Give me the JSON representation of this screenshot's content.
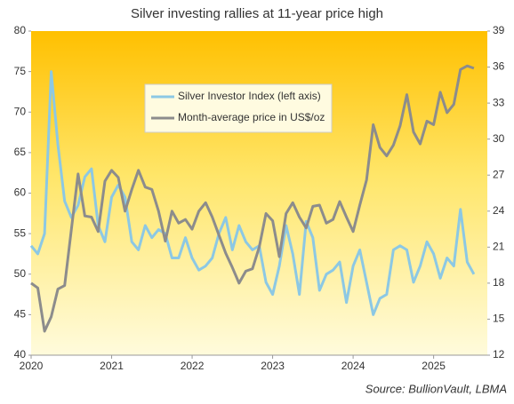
{
  "chart_data": {
    "type": "line",
    "title": "Silver investing rallies at 11-year price high",
    "source": "Source: BullionVault, LBMA",
    "x": [
      2020,
      2020.083,
      2020.167,
      2020.25,
      2020.333,
      2020.417,
      2020.5,
      2020.583,
      2020.667,
      2020.75,
      2020.833,
      2020.917,
      2021,
      2021.083,
      2021.167,
      2021.25,
      2021.333,
      2021.417,
      2021.5,
      2021.583,
      2021.667,
      2021.75,
      2021.833,
      2021.917,
      2022,
      2022.083,
      2022.167,
      2022.25,
      2022.333,
      2022.417,
      2022.5,
      2022.583,
      2022.667,
      2022.75,
      2022.833,
      2022.917,
      2023,
      2023.083,
      2023.167,
      2023.25,
      2023.333,
      2023.417,
      2023.5,
      2023.583,
      2023.667,
      2023.75,
      2023.833,
      2023.917,
      2024,
      2024.083,
      2024.167,
      2024.25,
      2024.333,
      2024.417,
      2024.5,
      2024.583,
      2024.667,
      2024.75,
      2024.833,
      2024.917,
      2025,
      2025.083,
      2025.167,
      2025.25,
      2025.333,
      2025.417,
      2025.5
    ],
    "xlim": [
      2020,
      2025.667
    ],
    "xticks": [
      2020,
      2021,
      2022,
      2023,
      2024,
      2025
    ],
    "ylim": [
      40,
      80
    ],
    "yticks": [
      40,
      45,
      50,
      55,
      60,
      65,
      70,
      75,
      80
    ],
    "y2lim": [
      12,
      39
    ],
    "y2ticks": [
      12,
      15,
      18,
      21,
      24,
      27,
      30,
      33,
      36,
      39
    ],
    "series": [
      {
        "name": "Silver Investor Index (left axis)",
        "color": "#8cc8e4",
        "values": [
          53.5,
          52.5,
          55,
          75,
          66,
          59,
          57,
          58.5,
          62,
          63,
          56,
          54,
          59.5,
          61,
          59.5,
          54,
          53,
          56,
          54.5,
          55.5,
          55,
          52,
          52,
          54.5,
          52,
          50.5,
          51,
          52,
          55,
          57,
          53,
          56,
          54,
          53,
          53.5,
          49,
          47.5,
          51,
          56,
          52.5,
          47.5,
          56.5,
          54.5,
          48,
          50,
          50.5,
          51.5,
          46.5,
          51,
          53,
          49,
          45,
          47,
          47.5,
          53,
          53.5,
          53,
          49,
          51,
          54,
          52.5,
          49.5,
          52,
          51,
          58,
          51.5,
          50
        ]
      },
      {
        "name": "Month-average price in US$/oz",
        "color": "#8c8c8c",
        "axis": "y2",
        "values": [
          18,
          17.6,
          14,
          15.2,
          17.5,
          17.8,
          22.5,
          27.1,
          23.6,
          23.5,
          22.3,
          26.5,
          27.4,
          26.8,
          24,
          25.8,
          27.4,
          26,
          25.8,
          24,
          21.5,
          24,
          23,
          23.3,
          22.5,
          24,
          24.7,
          23.5,
          22,
          20.5,
          19.3,
          18,
          19,
          19.2,
          21,
          23.8,
          23.2,
          20.2,
          23.8,
          24.7,
          23.5,
          22.6,
          24.4,
          24.5,
          23,
          23.3,
          24.8,
          23.5,
          22.3,
          24.5,
          26.6,
          31.2,
          29.3,
          28.6,
          29.5,
          31.1,
          33.7,
          30.6,
          29.6,
          31.5,
          31.2,
          33.9,
          32.2,
          32.9,
          35.8,
          36.1,
          35.9
        ]
      }
    ]
  }
}
